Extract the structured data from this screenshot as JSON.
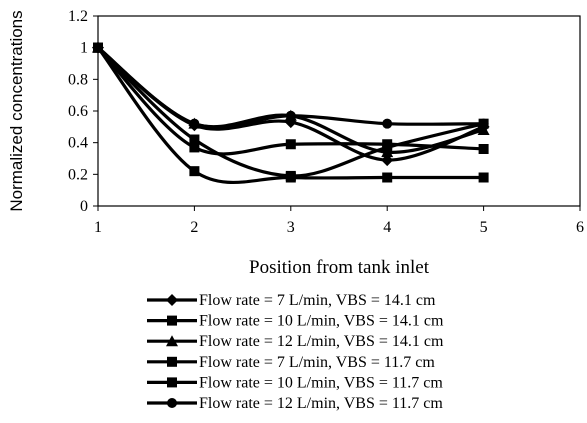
{
  "chart_data": {
    "type": "line",
    "xlabel": "Position from tank inlet",
    "ylabel": "Normalized concentrations",
    "xlim": [
      1,
      6
    ],
    "ylim": [
      0,
      1.2
    ],
    "xticks": [
      "1",
      "2",
      "3",
      "4",
      "5",
      "6"
    ],
    "yticks": [
      "0",
      "0.2",
      "0.4",
      "0.6",
      "0.8",
      "1",
      "1.2"
    ],
    "grid": false,
    "legend_position": "bottom",
    "x": [
      1,
      2,
      3,
      4,
      5
    ],
    "series": [
      {
        "name": "Flow rate = 7 L/min, VBS = 14.1 cm",
        "marker": "diamond",
        "values": [
          1.0,
          0.51,
          0.53,
          0.29,
          0.5
        ]
      },
      {
        "name": "Flow rate = 10 L/min, VBS = 14.1 cm",
        "marker": "square",
        "values": [
          1.0,
          0.42,
          0.19,
          0.37,
          0.52
        ]
      },
      {
        "name": "Flow rate = 12 L/min, VBS = 14.1 cm",
        "marker": "triangle",
        "values": [
          1.0,
          0.52,
          0.57,
          0.34,
          0.48
        ]
      },
      {
        "name": "Flow rate = 7 L/min, VBS = 11.7 cm",
        "marker": "square",
        "values": [
          1.0,
          0.37,
          0.39,
          0.39,
          0.36
        ]
      },
      {
        "name": "Flow rate = 10 L/min, VBS = 11.7 cm",
        "marker": "square",
        "values": [
          1.0,
          0.22,
          0.18,
          0.18,
          0.18
        ]
      },
      {
        "name": "Flow rate = 12 L/min, VBS = 11.7 cm",
        "marker": "circle",
        "values": [
          1.0,
          0.52,
          0.57,
          0.52,
          0.52
        ]
      }
    ]
  }
}
